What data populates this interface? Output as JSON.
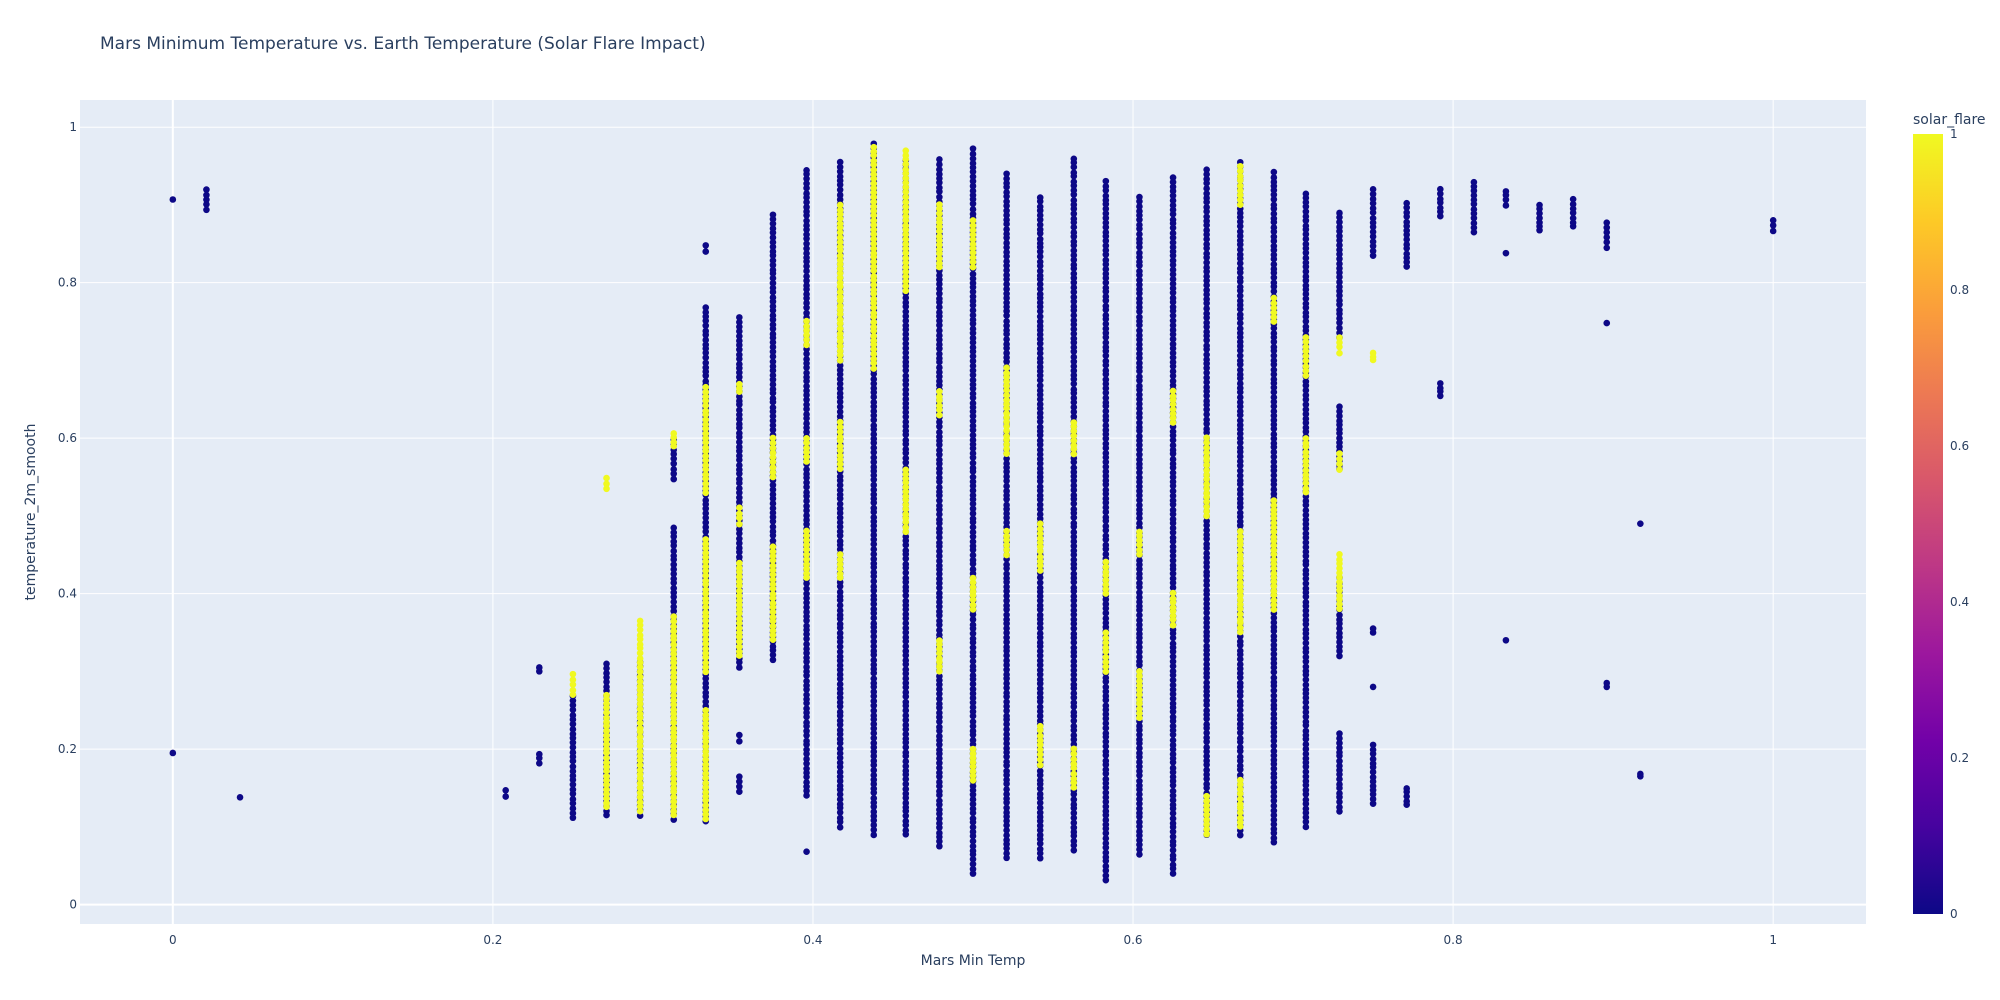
{
  "chart_data": {
    "type": "scatter",
    "title": "Mars Minimum Temperature vs. Earth Temperature (Solar Flare Impact)",
    "xlabel": "Mars Min Temp",
    "ylabel": "temperature_2m_smooth",
    "xlim": [
      -0.058,
      1.058
    ],
    "ylim": [
      -0.025,
      1.035
    ],
    "x_ticks": [
      0,
      0.2,
      0.4,
      0.6,
      0.8,
      1
    ],
    "x_tick_labels": [
      "0",
      "0.2",
      "0.4",
      "0.6",
      "0.8",
      "1"
    ],
    "y_ticks": [
      0,
      0.2,
      0.4,
      0.6,
      0.8,
      1
    ],
    "y_tick_labels": [
      "0",
      "0.2",
      "0.4",
      "0.6",
      "0.8",
      "1"
    ],
    "grid": true,
    "plot_background": "#e5ecf6",
    "color_variable": "solar_flare",
    "colorscale": [
      "#0d0887",
      "#46039f",
      "#7201a8",
      "#9c179e",
      "#bd3786",
      "#d8576b",
      "#ed7953",
      "#fb9f3a",
      "#fdca26",
      "#f0f921"
    ],
    "colorbar": {
      "title": "solar_flare",
      "range": [
        0,
        1
      ],
      "ticks": [
        0,
        0.2,
        0.4,
        0.6,
        0.8,
        1
      ],
      "tick_labels": [
        "0",
        "0.2",
        "0.4",
        "0.6",
        "0.8",
        "1"
      ]
    },
    "columns": [
      {
        "x": 0,
        "flare0": [
          [
            0.907,
            0.907
          ],
          [
            0.195,
            0.195
          ]
        ],
        "flare1": []
      },
      {
        "x": 0.021,
        "flare0": [
          [
            0.894,
            0.92
          ]
        ],
        "flare1": []
      },
      {
        "x": 0.042,
        "flare0": [
          [
            0.138,
            0.14
          ]
        ],
        "flare1": []
      },
      {
        "x": 0.208,
        "flare0": [
          [
            0.139,
            0.147
          ]
        ],
        "flare1": []
      },
      {
        "x": 0.229,
        "flare0": [
          [
            0.182,
            0.194
          ],
          [
            0.3,
            0.305
          ]
        ],
        "flare1": []
      },
      {
        "x": 0.25,
        "flare0": [
          [
            0.112,
            0.268
          ]
        ],
        "flare1": [
          [
            0.27,
            0.296
          ]
        ]
      },
      {
        "x": 0.271,
        "flare0": [
          [
            0.115,
            0.31
          ]
        ],
        "flare1": [
          [
            0.125,
            0.27
          ],
          [
            0.535,
            0.548
          ]
        ]
      },
      {
        "x": 0.292,
        "flare0": [
          [
            0.115,
            0.312
          ]
        ],
        "flare1": [
          [
            0.12,
            0.365
          ]
        ]
      },
      {
        "x": 0.313,
        "flare0": [
          [
            0.11,
            0.485
          ],
          [
            0.548,
            0.598
          ]
        ],
        "flare1": [
          [
            0.115,
            0.37
          ],
          [
            0.59,
            0.606
          ]
        ]
      },
      {
        "x": 0.333,
        "flare0": [
          [
            0.108,
            0.768
          ],
          [
            0.84,
            0.848
          ]
        ],
        "flare1": [
          [
            0.11,
            0.25
          ],
          [
            0.3,
            0.47
          ],
          [
            0.53,
            0.665
          ]
        ]
      },
      {
        "x": 0.354,
        "flare0": [
          [
            0.145,
            0.165
          ],
          [
            0.21,
            0.218
          ],
          [
            0.305,
            0.755
          ]
        ],
        "flare1": [
          [
            0.32,
            0.44
          ],
          [
            0.49,
            0.51
          ],
          [
            0.66,
            0.67
          ]
        ]
      },
      {
        "x": 0.375,
        "flare0": [
          [
            0.315,
            0.888
          ]
        ],
        "flare1": [
          [
            0.34,
            0.46
          ],
          [
            0.55,
            0.6
          ]
        ]
      },
      {
        "x": 0.396,
        "flare0": [
          [
            0.068,
            0.07
          ],
          [
            0.14,
            0.945
          ]
        ],
        "flare1": [
          [
            0.42,
            0.48
          ],
          [
            0.57,
            0.6
          ],
          [
            0.72,
            0.75
          ]
        ]
      },
      {
        "x": 0.417,
        "flare0": [
          [
            0.1,
            0.955
          ]
        ],
        "flare1": [
          [
            0.42,
            0.45
          ],
          [
            0.56,
            0.62
          ],
          [
            0.7,
            0.9
          ]
        ]
      },
      {
        "x": 0.438,
        "flare0": [
          [
            0.09,
            0.978
          ]
        ],
        "flare1": [
          [
            0.69,
            0.975
          ]
        ]
      },
      {
        "x": 0.458,
        "flare0": [
          [
            0.09,
            0.958
          ]
        ],
        "flare1": [
          [
            0.48,
            0.56
          ],
          [
            0.79,
            0.97
          ]
        ]
      },
      {
        "x": 0.479,
        "flare0": [
          [
            0.075,
            0.958
          ]
        ],
        "flare1": [
          [
            0.3,
            0.34
          ],
          [
            0.63,
            0.66
          ],
          [
            0.82,
            0.9
          ]
        ]
      },
      {
        "x": 0.5,
        "flare0": [
          [
            0.04,
            0.972
          ]
        ],
        "flare1": [
          [
            0.16,
            0.2
          ],
          [
            0.38,
            0.42
          ],
          [
            0.82,
            0.88
          ]
        ]
      },
      {
        "x": 0.521,
        "flare0": [
          [
            0.06,
            0.94
          ]
        ],
        "flare1": [
          [
            0.45,
            0.48
          ],
          [
            0.58,
            0.69
          ]
        ]
      },
      {
        "x": 0.542,
        "flare0": [
          [
            0.06,
            0.91
          ]
        ],
        "flare1": [
          [
            0.18,
            0.23
          ],
          [
            0.43,
            0.49
          ]
        ]
      },
      {
        "x": 0.563,
        "flare0": [
          [
            0.07,
            0.96
          ]
        ],
        "flare1": [
          [
            0.15,
            0.2
          ],
          [
            0.58,
            0.62
          ]
        ]
      },
      {
        "x": 0.583,
        "flare0": [
          [
            0.032,
            0.93
          ]
        ],
        "flare1": [
          [
            0.3,
            0.35
          ],
          [
            0.4,
            0.44
          ]
        ]
      },
      {
        "x": 0.604,
        "flare0": [
          [
            0.065,
            0.91
          ]
        ],
        "flare1": [
          [
            0.24,
            0.3
          ],
          [
            0.45,
            0.48
          ]
        ]
      },
      {
        "x": 0.625,
        "flare0": [
          [
            0.04,
            0.935
          ]
        ],
        "flare1": [
          [
            0.36,
            0.4
          ],
          [
            0.62,
            0.66
          ]
        ]
      },
      {
        "x": 0.646,
        "flare0": [
          [
            0.09,
            0.945
          ]
        ],
        "flare1": [
          [
            0.09,
            0.14
          ],
          [
            0.5,
            0.6
          ]
        ]
      },
      {
        "x": 0.667,
        "flare0": [
          [
            0.09,
            0.955
          ]
        ],
        "flare1": [
          [
            0.1,
            0.16
          ],
          [
            0.35,
            0.48
          ],
          [
            0.9,
            0.95
          ]
        ]
      },
      {
        "x": 0.688,
        "flare0": [
          [
            0.08,
            0.942
          ]
        ],
        "flare1": [
          [
            0.38,
            0.52
          ],
          [
            0.75,
            0.78
          ]
        ]
      },
      {
        "x": 0.708,
        "flare0": [
          [
            0.1,
            0.915
          ]
        ],
        "flare1": [
          [
            0.53,
            0.6
          ],
          [
            0.68,
            0.73
          ]
        ]
      },
      {
        "x": 0.729,
        "flare0": [
          [
            0.12,
            0.22
          ],
          [
            0.32,
            0.42
          ],
          [
            0.56,
            0.64
          ],
          [
            0.73,
            0.89
          ]
        ],
        "flare1": [
          [
            0.38,
            0.45
          ],
          [
            0.56,
            0.58
          ],
          [
            0.71,
            0.73
          ]
        ]
      },
      {
        "x": 0.75,
        "flare0": [
          [
            0.13,
            0.205
          ],
          [
            0.28,
            0.28
          ],
          [
            0.35,
            0.355
          ],
          [
            0.835,
            0.92
          ]
        ],
        "flare1": [
          [
            0.7,
            0.71
          ]
        ]
      },
      {
        "x": 0.771,
        "flare0": [
          [
            0.128,
            0.15
          ],
          [
            0.82,
            0.902
          ]
        ],
        "flare1": []
      },
      {
        "x": 0.792,
        "flare0": [
          [
            0.655,
            0.67
          ],
          [
            0.885,
            0.92
          ]
        ],
        "flare1": []
      },
      {
        "x": 0.813,
        "flare0": [
          [
            0.865,
            0.93
          ]
        ],
        "flare1": []
      },
      {
        "x": 0.833,
        "flare0": [
          [
            0.34,
            0.34
          ],
          [
            0.838,
            0.838
          ],
          [
            0.9,
            0.918
          ]
        ],
        "flare1": []
      },
      {
        "x": 0.854,
        "flare0": [
          [
            0.867,
            0.9
          ]
        ],
        "flare1": []
      },
      {
        "x": 0.875,
        "flare0": [
          [
            0.872,
            0.907
          ]
        ],
        "flare1": []
      },
      {
        "x": 0.896,
        "flare0": [
          [
            0.28,
            0.285
          ],
          [
            0.748,
            0.75
          ],
          [
            0.845,
            0.877
          ]
        ],
        "flare1": []
      },
      {
        "x": 0.917,
        "flare0": [
          [
            0.165,
            0.168
          ],
          [
            0.49,
            0.492
          ]
        ],
        "flare1": []
      },
      {
        "x": 1,
        "flare0": [
          [
            0.867,
            0.88
          ]
        ],
        "flare1": []
      }
    ]
  }
}
